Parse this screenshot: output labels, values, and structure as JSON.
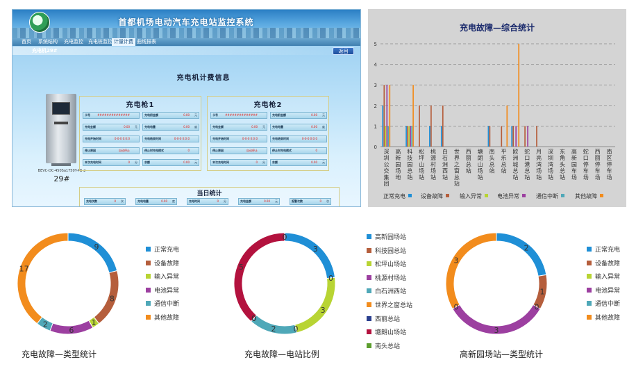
{
  "colors": {
    "normal": "#1f8fd6",
    "device": "#b55e3c",
    "input": "#b8d433",
    "battery": "#9c3fa0",
    "comm": "#4fa8b8",
    "other": "#f28c1d",
    "gaoxinyuan": "#1f8fd6",
    "kejiyuan": "#b55e3c",
    "songping": "#b8d433",
    "taoyuan": "#9c3fa0",
    "baishizhou": "#4fa8b8",
    "shijie": "#f28c1d",
    "xili": "#2a3f8f",
    "tanglang": "#b3123e",
    "nantou": "#5c9e2e"
  },
  "scada": {
    "title": "首都机场电动汽车充电站监控系统",
    "menu": [
      "首页",
      "系统结构",
      "充电监控",
      "充电桩监控",
      "计量计费",
      "曲线报表"
    ],
    "active_menu": "计量计费",
    "breadcrumb": "充电机29#",
    "back_label": "返回",
    "section_title": "充电机计费信息",
    "charger_model": "BEVC-DC-450Sa1750Y-PB-2",
    "charger_number": "29#",
    "gun1_title": "充电枪1",
    "gun2_title": "充电枪2",
    "gun_rows": [
      [
        {
          "label": "卡号",
          "value": "##############",
          "unit": ""
        },
        {
          "label": "充电前金额",
          "value": "0.00",
          "unit": "元"
        }
      ],
      [
        {
          "label": "充电金额",
          "value": "0.00",
          "unit": "元"
        },
        {
          "label": "充电电量",
          "value": "0.00",
          "unit": "度"
        }
      ],
      [
        {
          "label": "充电开始时间",
          "value": "0-0-0 0:0:0",
          "unit": ""
        },
        {
          "label": "充电结束时间",
          "value": "0-0-0 0:0:0",
          "unit": ""
        }
      ],
      [
        {
          "label": "停止原因",
          "value": "自动停止",
          "unit": ""
        },
        {
          "label": "停止时充电模式",
          "value": "0",
          "unit": ""
        }
      ],
      [
        {
          "label": "本次充电时间",
          "value": "0",
          "unit": "分"
        },
        {
          "label": "余额",
          "value": "0.00",
          "unit": "元"
        }
      ]
    ],
    "today_title": "当日统计",
    "today": [
      {
        "label": "充电次数",
        "value": "0",
        "unit": "次"
      },
      {
        "label": "充电电量",
        "value": "0.00",
        "unit": "度"
      },
      {
        "label": "充电时间",
        "value": "0",
        "unit": "分"
      },
      {
        "label": "充电金额",
        "value": "0.00",
        "unit": "元"
      },
      {
        "label": "报警次数",
        "value": "0",
        "unit": "次"
      }
    ]
  },
  "chart_data": [
    {
      "type": "bar",
      "title": "充电故障—综合统计",
      "ylim": [
        0,
        5
      ],
      "yticks": [
        "0",
        "1",
        "2",
        "3",
        "4",
        "5"
      ],
      "grid": true,
      "legend_position": "bottom",
      "categories": [
        "深圳公交集团",
        "高新园场地",
        "科技园总站",
        "松坪山场站",
        "桃源村场站",
        "白石洲西站",
        "世界之窗总站",
        "西丽总站",
        "塘朗山场站",
        "南头总站",
        "平乐总站",
        "欧洲城总站",
        "蛇口港总站",
        "月亮湾场站",
        "深圳湾场站",
        "东角头总站",
        "高新园车场",
        "蛇口停车场",
        "西丽停车场",
        "南区停车场"
      ],
      "series": [
        {
          "name": "正常充电",
          "values": [
            2,
            0,
            1,
            0,
            1,
            1,
            0,
            0,
            0,
            1,
            0,
            1,
            0,
            0,
            0,
            0,
            0,
            0,
            0,
            0
          ]
        },
        {
          "name": "设备故障",
          "values": [
            3,
            0,
            1,
            2,
            2,
            2,
            0,
            0,
            0,
            1,
            1,
            1,
            1,
            1,
            0,
            0,
            0,
            0,
            0,
            0
          ]
        },
        {
          "name": "输入异常",
          "values": [
            1,
            0,
            1,
            0,
            0,
            0,
            0,
            0,
            0,
            0,
            0,
            0,
            0,
            0,
            0,
            0,
            0,
            0,
            0,
            0
          ]
        },
        {
          "name": "电池异常",
          "values": [
            3,
            0,
            1,
            0,
            0,
            0,
            0,
            0,
            0,
            0,
            0,
            1,
            1,
            0,
            0,
            0,
            0,
            0,
            0,
            0
          ]
        },
        {
          "name": "通信中断",
          "values": [
            1,
            0,
            1,
            0,
            0,
            0,
            0,
            0,
            0,
            0,
            0,
            0,
            0,
            0,
            0,
            0,
            0,
            0,
            0,
            0
          ]
        },
        {
          "name": "其他故障",
          "values": [
            3,
            0,
            3,
            0,
            0,
            0,
            0,
            0,
            0,
            0,
            2,
            5,
            0,
            0,
            0,
            0,
            0,
            0,
            0,
            0
          ]
        }
      ]
    },
    {
      "type": "pie",
      "title": "充电故障—类型统计",
      "labels": [
        "正常充电",
        "设备故障",
        "输入异常",
        "电池异常",
        "通信中断",
        "其他故障"
      ],
      "values": [
        9,
        8,
        1,
        6,
        2,
        17
      ],
      "color_keys": [
        "normal",
        "device",
        "input",
        "battery",
        "comm",
        "other"
      ],
      "legend_position": "right"
    },
    {
      "type": "pie",
      "title": "充电故障—电站比例",
      "labels": [
        "高新园场站",
        "科技园总站",
        "松坪山场站",
        "桃源村场站",
        "白石洲西站",
        "世界之窗总站",
        "西丽总站",
        "塘朗山场站",
        "南头总站"
      ],
      "values": [
        3,
        0,
        3,
        0,
        2,
        0,
        0,
        5,
        0
      ],
      "slice_label_values": [
        3,
        0,
        3,
        0,
        2,
        0,
        0,
        5,
        0
      ],
      "color_keys": [
        "gaoxinyuan",
        "kejiyuan",
        "songping",
        "taoyuan",
        "baishizhou",
        "shijie",
        "xili",
        "tanglang",
        "nantou"
      ],
      "slice_colors": [
        "gaoxinyuan",
        "shijie",
        "songping",
        "shijie",
        "baishizhou",
        "shijie",
        "kejiyuan",
        "kejiyuan",
        "gaoxinyuan"
      ],
      "legend_position": "right"
    },
    {
      "type": "pie",
      "title": "高新园场站—类型统计",
      "labels": [
        "正常充电",
        "设备故障",
        "输入异常",
        "电池异常",
        "通信中断",
        "其他故障"
      ],
      "values": [
        2,
        1,
        0,
        3,
        0,
        3
      ],
      "color_keys": [
        "normal",
        "device",
        "input",
        "battery",
        "comm",
        "other"
      ],
      "legend_position": "right"
    }
  ]
}
